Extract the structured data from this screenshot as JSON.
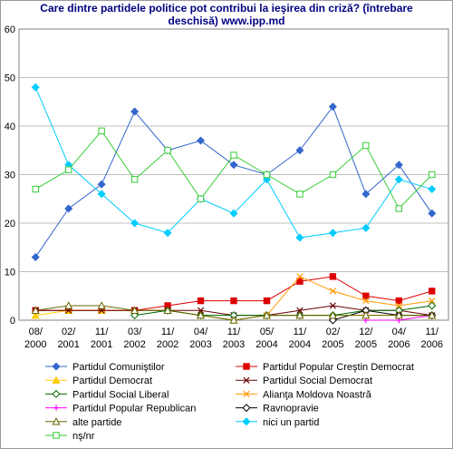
{
  "chart_data": {
    "type": "line",
    "title_line1": "Care dintre partidele politice pot contribui la ieşirea din criză? (întrebare",
    "title_line2": "deschisă) www.ipp.md",
    "x": [
      [
        "08/",
        "2000"
      ],
      [
        "02/",
        "2001"
      ],
      [
        "11/",
        "2001"
      ],
      [
        "03/",
        "2002"
      ],
      [
        "11/",
        "2002"
      ],
      [
        "04/",
        "2003"
      ],
      [
        "11/",
        "2003"
      ],
      [
        "05/",
        "2004"
      ],
      [
        "11/",
        "2004"
      ],
      [
        "02/",
        "2005"
      ],
      [
        "12/",
        "2005"
      ],
      [
        "04/",
        "2006"
      ],
      [
        "11/",
        "2006"
      ]
    ],
    "ylim": [
      0,
      60
    ],
    "yticks": [
      0,
      10,
      20,
      30,
      40,
      50,
      60
    ],
    "grid": "horizontal",
    "legend_position": "bottom",
    "series": [
      {
        "name": "Partidul Comuniştilor",
        "color": "#3366CC",
        "marker": "diamond",
        "values": [
          13,
          23,
          28,
          43,
          35,
          37,
          32,
          30,
          35,
          44,
          26,
          32,
          22
        ]
      },
      {
        "name": "Partidul Popular Creştin Democrat",
        "color": "#DD0000",
        "marker": "square",
        "values": [
          2,
          2,
          2,
          2,
          3,
          4,
          4,
          4,
          8,
          9,
          5,
          4,
          6
        ]
      },
      {
        "name": "Partidul Democrat",
        "color": "#FFCC00",
        "marker": "triangle",
        "values": [
          1,
          2,
          2,
          2,
          2,
          1,
          0,
          1,
          1,
          1,
          1,
          1,
          1
        ]
      },
      {
        "name": "Partidul Social Democrat",
        "color": "#660000",
        "marker": "x",
        "values": [
          2,
          2,
          2,
          2,
          2,
          2,
          1,
          1,
          2,
          3,
          2,
          2,
          1
        ]
      },
      {
        "name": "Partidul Social Liberal",
        "color": "#006600",
        "marker": "diamond-open",
        "values": [
          null,
          null,
          null,
          1,
          2,
          1,
          1,
          1,
          1,
          1,
          2,
          2,
          3
        ]
      },
      {
        "name": "Alianţa Moldova Noastră",
        "color": "#FF9900",
        "marker": "x",
        "values": [
          null,
          null,
          null,
          null,
          null,
          null,
          null,
          1,
          9,
          6,
          4,
          3,
          4
        ]
      },
      {
        "name": "Partidul Popular Republican",
        "color": "#FF00FF",
        "marker": "plus",
        "values": [
          null,
          null,
          null,
          null,
          null,
          null,
          null,
          null,
          null,
          null,
          0,
          0,
          1
        ]
      },
      {
        "name": "Ravnopravie",
        "color": "#000000",
        "marker": "diamond-open",
        "values": [
          null,
          null,
          null,
          null,
          null,
          null,
          null,
          null,
          null,
          0,
          2,
          1,
          1
        ]
      },
      {
        "name": "alte partide",
        "color": "#666600",
        "marker": "triangle-open",
        "values": [
          2,
          3,
          3,
          2,
          2,
          1,
          0,
          1,
          1,
          1,
          1,
          1,
          1
        ]
      },
      {
        "name": "nici un partid",
        "color": "#00CCFF",
        "marker": "diamond",
        "values": [
          48,
          32,
          26,
          20,
          18,
          25,
          22,
          29,
          17,
          18,
          19,
          29,
          27
        ]
      },
      {
        "name": "nş/nr",
        "color": "#33CC33",
        "marker": "square-open",
        "values": [
          27,
          31,
          39,
          29,
          35,
          25,
          34,
          30,
          26,
          30,
          36,
          23,
          30
        ]
      }
    ]
  }
}
